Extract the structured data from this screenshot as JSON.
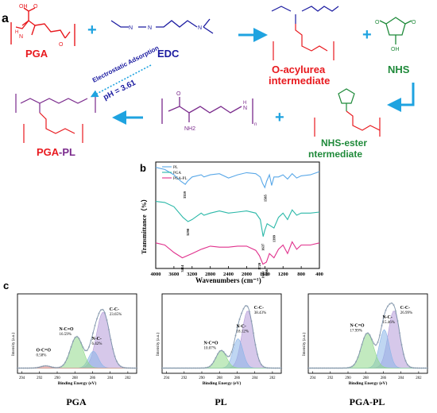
{
  "panels": {
    "a": "a",
    "b": "b",
    "c": "c"
  },
  "scheme": {
    "pga_label": "PGA",
    "edc_label": "EDC",
    "o_acylurea_line1": "O-acylurea",
    "o_acylurea_line2": "intermediate",
    "nhs_label": "NHS",
    "nhs_ester_line1": "NHS-ester",
    "nhs_ester_line2": "ntermediate",
    "pga_pl_part1": "PGA",
    "pga_pl_part2": "-PL",
    "electrostatic": "Electrostatic Adsorption",
    "ph": "pH = 3.61",
    "atoms": {
      "oh": "OH",
      "o": "O",
      "n": "N",
      "h": "H",
      "nh2": "NH2",
      "n_sub": "n"
    },
    "colors": {
      "red": "#e8191e",
      "blue": "#1a1aa0",
      "purple": "#7a2a8c",
      "green": "#1f8a3a",
      "arrow": "#1fa3e0"
    }
  },
  "chart_data": [
    {
      "type": "line",
      "title": "",
      "xlabel": "Wavenumbers (cm⁻¹)",
      "ylabel": "Transmittance（%）",
      "x_ticks": [
        "4000",
        "3600",
        "3200",
        "2800",
        "2400",
        "2000",
        "1600",
        "1200",
        "800",
        "400"
      ],
      "xlim": [
        4000,
        400
      ],
      "legend": [
        "PL",
        "PGA",
        "PGA-PL"
      ],
      "series": [
        {
          "name": "PL",
          "color": "#5aa8e8",
          "x": [
            4000,
            3800,
            3600,
            3450,
            3350,
            3300,
            3200,
            3000,
            2940,
            2800,
            2600,
            2400,
            2200,
            2000,
            1800,
            1700,
            1650,
            1600,
            1560,
            1500,
            1450,
            1400,
            1300,
            1200,
            1100,
            1000,
            900,
            800,
            600,
            400
          ],
          "y": [
            0.95,
            0.93,
            0.88,
            0.82,
            0.79,
            0.82,
            0.86,
            0.88,
            0.86,
            0.88,
            0.89,
            0.85,
            0.88,
            0.9,
            0.89,
            0.86,
            0.8,
            0.76,
            0.82,
            0.88,
            0.78,
            0.86,
            0.86,
            0.88,
            0.84,
            0.89,
            0.85,
            0.87,
            0.88,
            0.91
          ]
        },
        {
          "name": "PGA",
          "color": "#2bb8a8",
          "x": [
            4000,
            3800,
            3600,
            3400,
            3290,
            3200,
            3000,
            2940,
            2800,
            2600,
            2400,
            2200,
            2000,
            1800,
            1700,
            1637,
            1600,
            1550,
            1399,
            1300,
            1200,
            1100,
            1000,
            900,
            800,
            600,
            400
          ],
          "y": [
            0.63,
            0.62,
            0.58,
            0.48,
            0.44,
            0.46,
            0.52,
            0.5,
            0.52,
            0.54,
            0.52,
            0.53,
            0.54,
            0.52,
            0.46,
            0.3,
            0.36,
            0.42,
            0.38,
            0.48,
            0.52,
            0.46,
            0.55,
            0.5,
            0.52,
            0.52,
            0.53
          ]
        },
        {
          "name": "PGA-PL",
          "color": "#e0308c",
          "x": [
            4000,
            3800,
            3600,
            3414,
            3200,
            3000,
            2800,
            2600,
            2400,
            2200,
            2000,
            1800,
            1720,
            1643,
            1566,
            1500,
            1400,
            1300,
            1200,
            1100,
            1000,
            900,
            800,
            600,
            400
          ],
          "y": [
            0.24,
            0.22,
            0.15,
            0.1,
            0.14,
            0.18,
            0.21,
            0.2,
            0.2,
            0.21,
            0.21,
            0.17,
            0.12,
            0.04,
            0.06,
            0.14,
            0.1,
            0.18,
            0.22,
            0.14,
            0.25,
            0.18,
            0.22,
            0.22,
            0.24
          ]
        }
      ],
      "annotations": [
        {
          "text": "3359",
          "x": 3359,
          "series": "PL"
        },
        {
          "text": "1585",
          "x": 1585,
          "series": "PL"
        },
        {
          "text": "3290",
          "x": 3290,
          "series": "PGA"
        },
        {
          "text": "1637",
          "x": 1637,
          "series": "PGA"
        },
        {
          "text": "1399",
          "x": 1399,
          "series": "PGA"
        },
        {
          "text": "3414",
          "x": 3414,
          "series": "PGA-PL"
        },
        {
          "text": "1720",
          "x": 1720,
          "series": "PGA-PL"
        },
        {
          "text": "1643",
          "x": 1643,
          "series": "PGA-PL"
        },
        {
          "text": "1566",
          "x": 1566,
          "series": "PGA-PL"
        }
      ]
    },
    {
      "type": "line",
      "title": "PGA",
      "xlabel": "Binding Energy (eV)",
      "ylabel": "Intensity (a.u.)",
      "x_ticks": [
        "294",
        "292",
        "290",
        "288",
        "286",
        "284",
        "282"
      ],
      "xlim": [
        294.5,
        281
      ],
      "peaks": [
        {
          "name": "C-C-",
          "pct": "23.65%",
          "center": 284.8,
          "height": 0.8,
          "width": 0.75,
          "color": "#b49ad8"
        },
        {
          "name": "N-C-",
          "pct": "6.42%",
          "center": 285.9,
          "height": 0.24,
          "width": 0.55,
          "color": "#8ab4e8"
        },
        {
          "name": "N-C=O",
          "pct": "16.59%",
          "center": 287.8,
          "height": 0.45,
          "width": 0.7,
          "color": "#8fd98a"
        },
        {
          "name": "O-C=O",
          "pct": "0.58%",
          "center": 291.3,
          "height": 0.03,
          "width": 0.55,
          "color": "#e88a8a"
        }
      ]
    },
    {
      "type": "line",
      "title": "PL",
      "xlabel": "Binding Energy (eV)",
      "ylabel": "Intensity (a.u.)",
      "x_ticks": [
        "294",
        "292",
        "290",
        "288",
        "286",
        "284",
        "282"
      ],
      "xlim": [
        294.5,
        281
      ],
      "peaks": [
        {
          "name": "C-C-",
          "pct": "38.43%",
          "center": 284.8,
          "height": 0.82,
          "width": 0.65,
          "color": "#b49ad8"
        },
        {
          "name": "N-C-",
          "pct": "18.12%",
          "center": 285.9,
          "height": 0.42,
          "width": 0.55,
          "color": "#8ab4e8"
        },
        {
          "name": "N-C=O",
          "pct": "10.07%",
          "center": 287.8,
          "height": 0.25,
          "width": 0.6,
          "color": "#8fd98a"
        }
      ]
    },
    {
      "type": "line",
      "title": "PGA-PL",
      "xlabel": "Binding Energy (eV)",
      "ylabel": "Intensity (a.u.)",
      "x_ticks": [
        "294",
        "292",
        "290",
        "288",
        "286",
        "284",
        "282"
      ],
      "xlim": [
        294.5,
        281
      ],
      "peaks": [
        {
          "name": "C-C-",
          "pct": "26.99%",
          "center": 284.8,
          "height": 0.82,
          "width": 0.65,
          "color": "#b49ad8"
        },
        {
          "name": "N-C-",
          "pct": "15.46%",
          "center": 285.9,
          "height": 0.55,
          "width": 0.55,
          "color": "#8ab4e8"
        },
        {
          "name": "N-C=O",
          "pct": "17.99%",
          "center": 287.8,
          "height": 0.5,
          "width": 0.7,
          "color": "#8fd98a"
        }
      ]
    }
  ]
}
